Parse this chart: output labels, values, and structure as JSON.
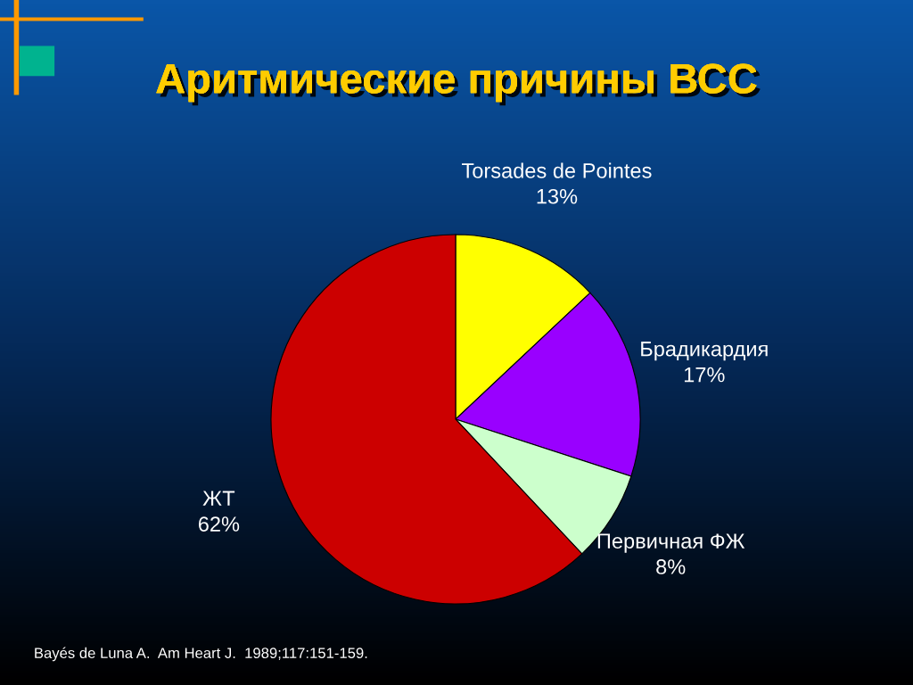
{
  "chart_data": {
    "type": "pie",
    "title": "Аритмические причины ВСС",
    "categories": [
      "Torsades de Pointes",
      "Брадикардия",
      "Первичная ФЖ",
      "ЖТ"
    ],
    "values": [
      13,
      17,
      8,
      62
    ],
    "value_labels": [
      "13%",
      "17%",
      "8%",
      "62%"
    ],
    "colors": [
      "#ffff00",
      "#9900ff",
      "#ccffcc",
      "#cc0000"
    ],
    "annotations": [
      "Bayés de Luna A.  Am Heart J.  1989;117:151-159."
    ],
    "legend": false
  }
}
